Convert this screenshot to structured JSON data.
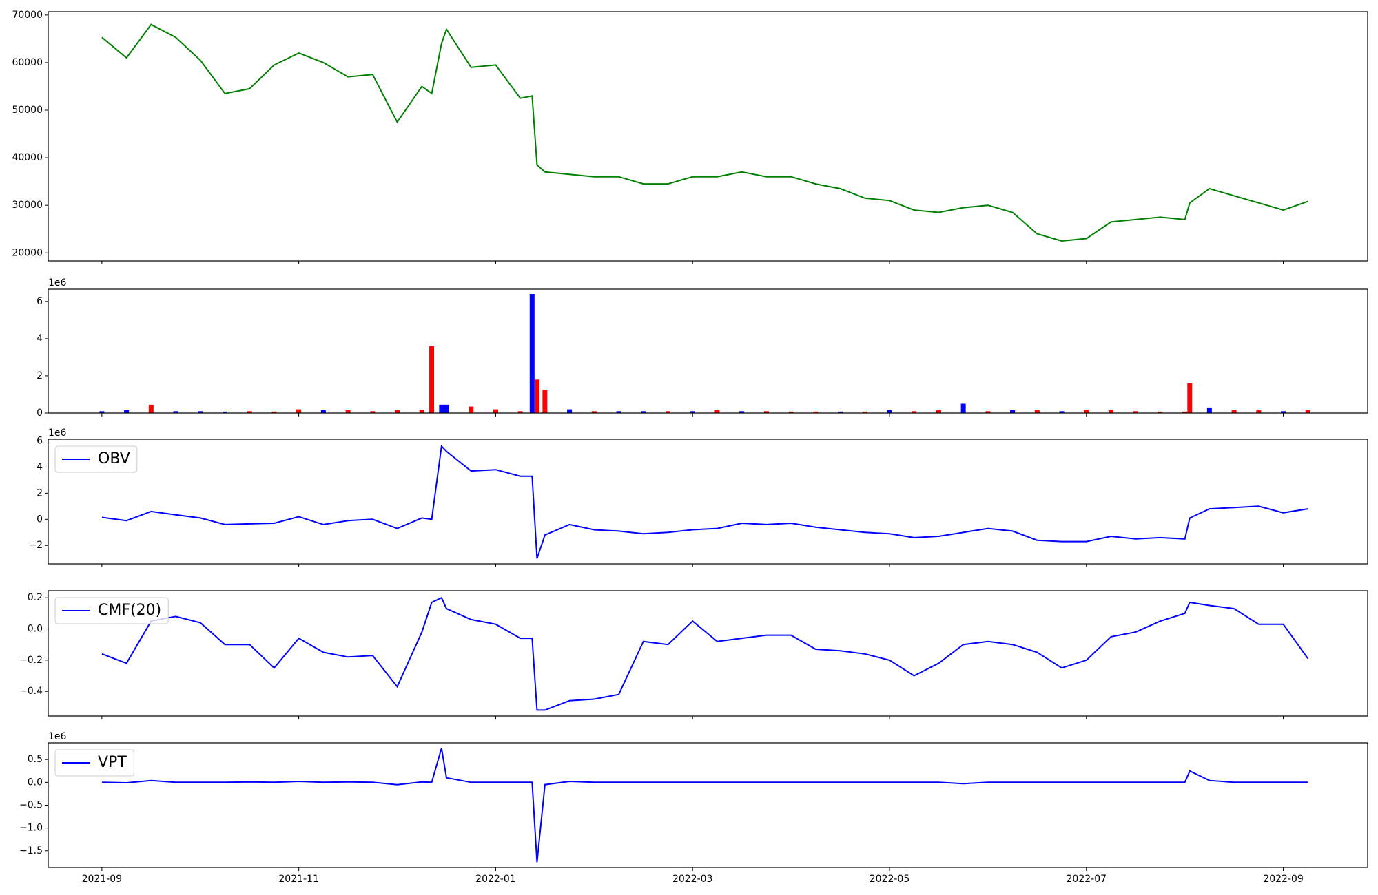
{
  "chart_data": [
    {
      "type": "line",
      "color": "#008000",
      "x": [
        0,
        0.25,
        0.5,
        0.75,
        1,
        1.25,
        1.5,
        1.75,
        2,
        2.25,
        2.5,
        2.75,
        3,
        3.25,
        3.35,
        3.45,
        3.5,
        3.75,
        4,
        4.25,
        4.37,
        4.42,
        4.5,
        4.75,
        5,
        5.25,
        5.5,
        5.75,
        6,
        6.25,
        6.5,
        6.75,
        7,
        7.25,
        7.5,
        7.75,
        8,
        8.25,
        8.5,
        8.75,
        9,
        9.25,
        9.5,
        9.75,
        10,
        10.25,
        10.5,
        10.75,
        11,
        11.05,
        11.25,
        11.5,
        11.75,
        12,
        12.25
      ],
      "values": [
        65300,
        61000,
        68000,
        65300,
        60500,
        53500,
        54500,
        59500,
        62000,
        60000,
        57000,
        57500,
        47500,
        55000,
        53500,
        64000,
        67000,
        59000,
        59500,
        52500,
        53000,
        38500,
        37000,
        36500,
        36000,
        36000,
        34500,
        34500,
        36000,
        36000,
        37000,
        36000,
        36000,
        34500,
        33500,
        31500,
        31000,
        29000,
        28500,
        29500,
        30000,
        28500,
        24000,
        22500,
        23000,
        26500,
        27000,
        27500,
        27000,
        30500,
        33500,
        32000,
        30500,
        29000,
        30800
      ],
      "xlim": [
        -0.545,
        12.857
      ],
      "ylim": [
        18300,
        70700
      ],
      "yticks": [
        20000,
        30000,
        40000,
        50000,
        60000,
        70000
      ]
    },
    {
      "type": "bar",
      "offset_label": "1e6",
      "x": [
        0,
        0.25,
        0.5,
        0.75,
        1,
        1.25,
        1.5,
        1.75,
        2,
        2.25,
        2.5,
        2.75,
        3,
        3.25,
        3.35,
        3.45,
        3.5,
        3.75,
        4,
        4.25,
        4.37,
        4.42,
        4.5,
        4.75,
        5,
        5.25,
        5.5,
        5.75,
        6,
        6.25,
        6.5,
        6.75,
        7,
        7.25,
        7.5,
        7.75,
        8,
        8.25,
        8.5,
        8.75,
        9,
        9.25,
        9.5,
        9.75,
        10,
        10.25,
        10.5,
        10.75,
        11,
        11.05,
        11.25,
        11.5,
        11.75,
        12,
        12.25
      ],
      "values": [
        100000,
        150000,
        450000,
        100000,
        100000,
        80000,
        100000,
        80000,
        200000,
        150000,
        150000,
        100000,
        150000,
        150000,
        3600000,
        450000,
        450000,
        350000,
        200000,
        100000,
        6400000,
        1800000,
        1250000,
        200000,
        100000,
        100000,
        100000,
        100000,
        100000,
        150000,
        100000,
        100000,
        80000,
        80000,
        80000,
        80000,
        150000,
        100000,
        150000,
        500000,
        100000,
        150000,
        150000,
        100000,
        150000,
        150000,
        100000,
        80000,
        80000,
        1600000,
        300000,
        150000,
        150000,
        100000,
        150000
      ],
      "colors": [
        "blue",
        "blue",
        "red",
        "blue",
        "blue",
        "blue",
        "red",
        "red",
        "red",
        "blue",
        "red",
        "red",
        "red",
        "red",
        "red",
        "blue",
        "blue",
        "red",
        "red",
        "red",
        "blue",
        "red",
        "red",
        "blue",
        "red",
        "blue",
        "blue",
        "red",
        "blue",
        "red",
        "blue",
        "red",
        "red",
        "red",
        "blue",
        "red",
        "blue",
        "red",
        "red",
        "blue",
        "red",
        "blue",
        "red",
        "blue",
        "red",
        "red",
        "red",
        "red",
        "red",
        "red",
        "blue",
        "red",
        "red",
        "blue",
        "red"
      ],
      "xlim": [
        -0.545,
        12.857
      ],
      "ylim": [
        0,
        6660000
      ],
      "yticks": [
        {
          "value": 0,
          "label": "0"
        },
        {
          "value": 2000000,
          "label": "2"
        },
        {
          "value": 4000000,
          "label": "4"
        },
        {
          "value": 6000000,
          "label": "6"
        }
      ]
    },
    {
      "type": "line",
      "offset_label": "1e6",
      "legend": "upper left",
      "x": [
        0,
        0.25,
        0.5,
        0.75,
        1,
        1.25,
        1.5,
        1.75,
        2,
        2.25,
        2.5,
        2.75,
        3,
        3.25,
        3.35,
        3.45,
        3.5,
        3.75,
        4,
        4.25,
        4.37,
        4.42,
        4.5,
        4.75,
        5,
        5.25,
        5.5,
        5.75,
        6,
        6.25,
        6.5,
        6.75,
        7,
        7.25,
        7.5,
        7.75,
        8,
        8.25,
        8.5,
        8.75,
        9,
        9.25,
        9.5,
        9.75,
        10,
        10.25,
        10.5,
        10.75,
        11,
        11.05,
        11.25,
        11.5,
        11.75,
        12,
        12.25
      ],
      "series": [
        {
          "name": "OBV",
          "color": "blue",
          "values": [
            150000,
            -100000,
            600000,
            350000,
            100000,
            -400000,
            -350000,
            -300000,
            200000,
            -400000,
            -100000,
            0,
            -700000,
            100000,
            0,
            5600000,
            5200000,
            3700000,
            3800000,
            3300000,
            3300000,
            -3000000,
            -1200000,
            -400000,
            -800000,
            -900000,
            -1100000,
            -1000000,
            -800000,
            -700000,
            -300000,
            -400000,
            -300000,
            -600000,
            -800000,
            -1000000,
            -1100000,
            -1400000,
            -1300000,
            -1000000,
            -700000,
            -900000,
            -1600000,
            -1700000,
            -1700000,
            -1300000,
            -1500000,
            -1400000,
            -1500000,
            100000,
            800000,
            900000,
            1000000,
            500000,
            800000
          ]
        }
      ],
      "xlim": [
        -0.545,
        12.857
      ],
      "ylim": [
        -3410000,
        6130000
      ],
      "yticks": [
        {
          "value": -2000000,
          "label": "−2"
        },
        {
          "value": 0,
          "label": "0"
        },
        {
          "value": 2000000,
          "label": "2"
        },
        {
          "value": 4000000,
          "label": "4"
        },
        {
          "value": 6000000,
          "label": "6"
        }
      ]
    },
    {
      "type": "line",
      "legend": "upper left",
      "x": [
        0,
        0.25,
        0.5,
        0.75,
        1,
        1.25,
        1.5,
        1.75,
        2,
        2.25,
        2.5,
        2.75,
        3,
        3.25,
        3.35,
        3.45,
        3.5,
        3.75,
        4,
        4.25,
        4.37,
        4.42,
        4.5,
        4.75,
        5,
        5.25,
        5.5,
        5.75,
        6,
        6.25,
        6.5,
        6.75,
        7,
        7.25,
        7.5,
        7.75,
        8,
        8.25,
        8.5,
        8.75,
        9,
        9.25,
        9.5,
        9.75,
        10,
        10.25,
        10.5,
        10.75,
        11,
        11.05,
        11.25,
        11.5,
        11.75,
        12,
        12.25
      ],
      "series": [
        {
          "name": "CMF(20)",
          "color": "blue",
          "values": [
            -0.16,
            -0.22,
            0.05,
            0.08,
            0.04,
            -0.1,
            -0.1,
            -0.25,
            -0.06,
            -0.15,
            -0.18,
            -0.17,
            -0.37,
            -0.02,
            0.17,
            0.2,
            0.13,
            0.06,
            0.03,
            -0.06,
            -0.06,
            -0.52,
            -0.52,
            -0.46,
            -0.45,
            -0.42,
            -0.08,
            -0.1,
            0.05,
            -0.08,
            -0.06,
            -0.04,
            -0.04,
            -0.13,
            -0.14,
            -0.16,
            -0.2,
            -0.3,
            -0.22,
            -0.1,
            -0.08,
            -0.1,
            -0.15,
            -0.25,
            -0.2,
            -0.05,
            -0.02,
            0.05,
            0.1,
            0.17,
            0.15,
            0.13,
            0.03,
            0.03,
            -0.19
          ]
        }
      ],
      "xlim": [
        -0.545,
        12.857
      ],
      "ylim": [
        -0.558,
        0.245
      ],
      "yticks": [
        {
          "value": -0.4,
          "label": "−0.4"
        },
        {
          "value": -0.2,
          "label": "−0.2"
        },
        {
          "value": 0,
          "label": "0.0"
        },
        0.2
      ]
    },
    {
      "type": "line",
      "offset_label": "1e6",
      "legend": "upper left",
      "x": [
        0,
        0.25,
        0.5,
        0.75,
        1,
        1.25,
        1.5,
        1.75,
        2,
        2.25,
        2.5,
        2.75,
        3,
        3.25,
        3.35,
        3.45,
        3.5,
        3.75,
        4,
        4.25,
        4.37,
        4.42,
        4.5,
        4.75,
        5,
        5.25,
        5.5,
        5.75,
        6,
        6.25,
        6.5,
        6.75,
        7,
        7.25,
        7.5,
        7.75,
        8,
        8.25,
        8.5,
        8.75,
        9,
        9.25,
        9.5,
        9.75,
        10,
        10.25,
        10.5,
        10.75,
        11,
        11.05,
        11.25,
        11.5,
        11.75,
        12,
        12.25
      ],
      "series": [
        {
          "name": "VPT",
          "color": "blue",
          "values": [
            0,
            -10000,
            40000,
            0,
            0,
            0,
            10000,
            0,
            20000,
            0,
            10000,
            0,
            -50000,
            10000,
            0,
            750000,
            100000,
            0,
            0,
            0,
            0,
            -1750000,
            -50000,
            20000,
            0,
            0,
            0,
            0,
            0,
            0,
            0,
            0,
            0,
            0,
            0,
            0,
            0,
            0,
            0,
            -30000,
            0,
            0,
            0,
            0,
            0,
            0,
            0,
            0,
            0,
            250000,
            40000,
            0,
            0,
            0,
            0
          ]
        }
      ],
      "xlim": [
        -0.545,
        12.857
      ],
      "ylim": [
        -1865000,
        865000
      ],
      "yticks": [
        {
          "value": -1500000,
          "label": "−1.5"
        },
        {
          "value": -1000000,
          "label": "−1.0"
        },
        {
          "value": -500000,
          "label": "−0.5"
        },
        {
          "value": 0,
          "label": "0.0"
        },
        {
          "value": 500000,
          "label": "0.5"
        }
      ],
      "xticks": [
        {
          "value": 0,
          "label": "2021-09"
        },
        {
          "value": 2,
          "label": "2021-11"
        },
        {
          "value": 4,
          "label": "2022-01"
        },
        {
          "value": 6,
          "label": "2022-03"
        },
        {
          "value": 8,
          "label": "2022-05"
        },
        {
          "value": 10,
          "label": "2022-07"
        },
        {
          "value": 12,
          "label": "2022-09"
        }
      ]
    }
  ]
}
